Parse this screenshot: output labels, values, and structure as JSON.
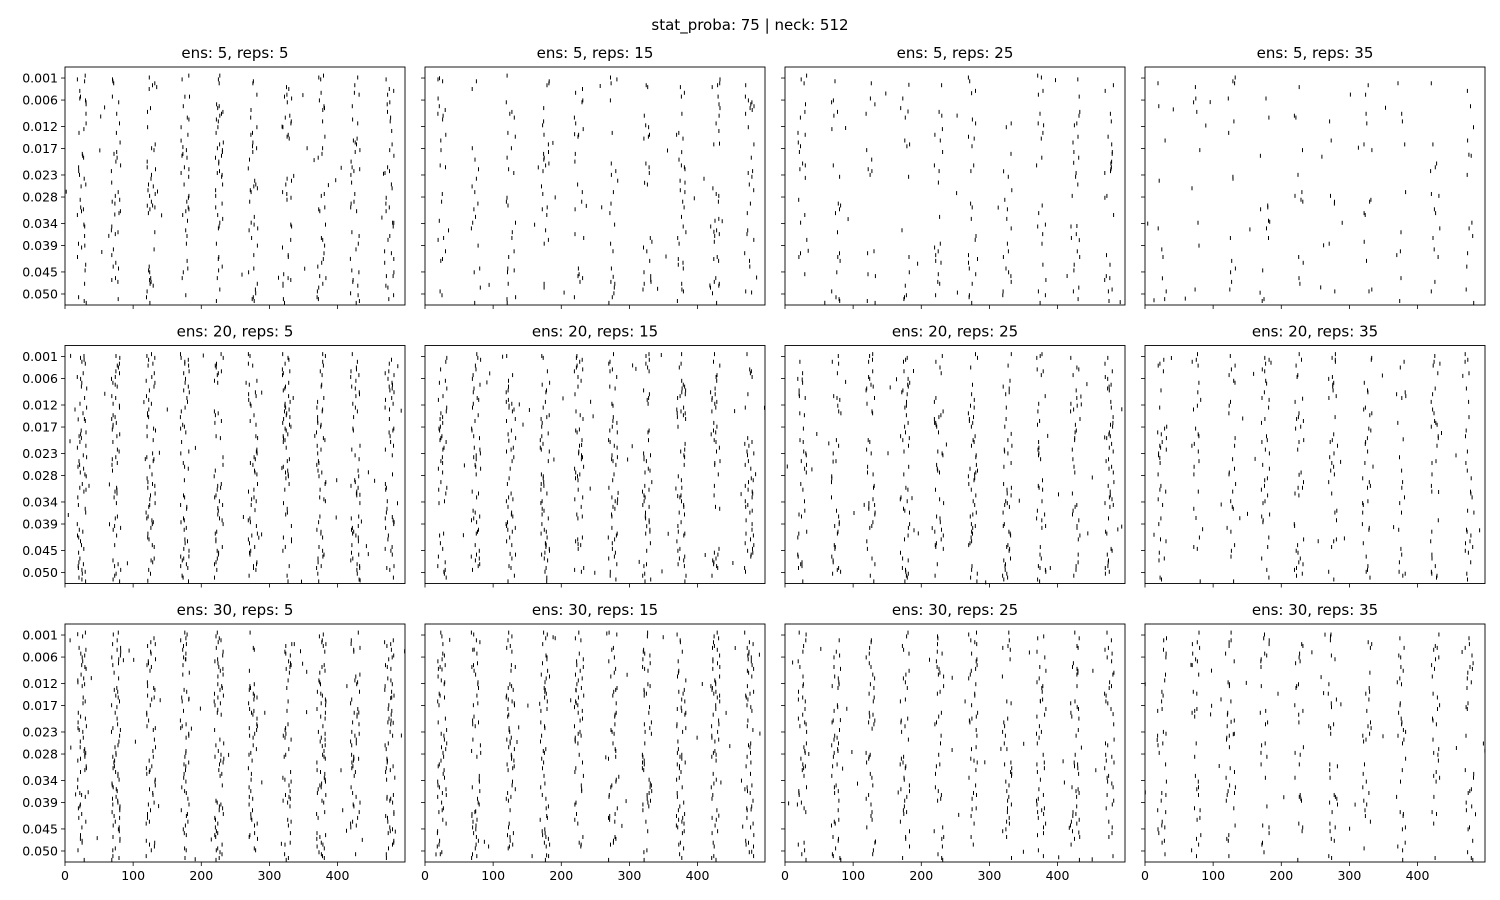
{
  "chart_data": {
    "type": "raster",
    "title": "stat_proba: 75 | neck: 512",
    "xlim": [
      0,
      499
    ],
    "xticks": [
      0,
      100,
      200,
      300,
      400
    ],
    "xtick_labels": [
      "0",
      "100",
      "200",
      "300",
      "400"
    ],
    "yticks": [
      0.001,
      0.006,
      0.012,
      0.017,
      0.023,
      0.028,
      0.034,
      0.039,
      0.045,
      0.05
    ],
    "ytick_labels": [
      "0.001",
      "0.006",
      "0.012",
      "0.017",
      "0.023",
      "0.028",
      "0.034",
      "0.039",
      "0.045",
      "0.050"
    ],
    "ylim": [
      -0.0015,
      0.0525
    ],
    "y_inverted": true,
    "grid": false,
    "mark_color": "#000000",
    "burst_x": [
      25,
      75,
      126,
      176,
      226,
      276,
      326,
      376,
      426,
      476
    ],
    "rows": [
      {
        "ens": 5,
        "label": "ens: 5"
      },
      {
        "ens": 20,
        "label": "ens: 20"
      },
      {
        "ens": 30,
        "label": "ens: 30"
      }
    ],
    "cols": [
      {
        "reps": 5,
        "label": "reps: 5"
      },
      {
        "reps": 15,
        "label": "reps: 15"
      },
      {
        "reps": 25,
        "label": "reps: 25"
      },
      {
        "reps": 35,
        "label": "reps: 35"
      }
    ],
    "panels": [
      {
        "title": "ens: 5, reps: 5",
        "density": 0.55
      },
      {
        "title": "ens: 5, reps: 15",
        "density": 0.4
      },
      {
        "title": "ens: 5, reps: 25",
        "density": 0.3
      },
      {
        "title": "ens: 5, reps: 35",
        "density": 0.2
      },
      {
        "title": "ens: 20, reps: 5",
        "density": 0.85
      },
      {
        "title": "ens: 20, reps: 15",
        "density": 0.75
      },
      {
        "title": "ens: 20, reps: 25",
        "density": 0.6
      },
      {
        "title": "ens: 20, reps: 35",
        "density": 0.45
      },
      {
        "title": "ens: 30, reps: 5",
        "density": 0.9
      },
      {
        "title": "ens: 30, reps: 15",
        "density": 0.8
      },
      {
        "title": "ens: 30, reps: 25",
        "density": 0.6
      },
      {
        "title": "ens: 30, reps: 35",
        "density": 0.45
      }
    ]
  }
}
